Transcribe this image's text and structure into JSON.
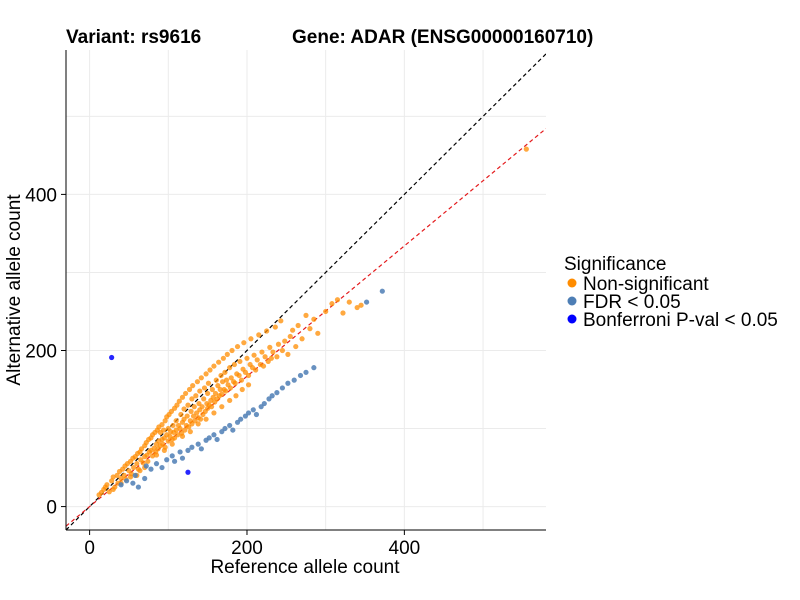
{
  "chart_data": {
    "type": "scatter",
    "title_left": "Variant: rs9616",
    "title_right": "Gene: ADAR (ENSG00000160710)",
    "xlabel": "Reference allele count",
    "ylabel": "Alternative allele count",
    "xlim": [
      -30,
      580
    ],
    "ylim": [
      -30,
      585
    ],
    "x_ticks": [
      0,
      200,
      400
    ],
    "y_ticks": [
      0,
      200,
      400
    ],
    "grid": true,
    "legend_position": "right",
    "legend_title": "Significance",
    "reference_lines": [
      {
        "name": "identity",
        "slope": 1.0,
        "intercept": 0,
        "color": "#000000",
        "style": "dashed"
      },
      {
        "name": "fit",
        "slope": 0.835,
        "intercept": 0,
        "color": "#e41a1c",
        "style": "dashed"
      }
    ],
    "series": [
      {
        "name": "Non-significant",
        "color": "#ff8c00",
        "points": [
          [
            12,
            15
          ],
          [
            18,
            22
          ],
          [
            22,
            28
          ],
          [
            25,
            19
          ],
          [
            28,
            33
          ],
          [
            30,
            38
          ],
          [
            32,
            25
          ],
          [
            35,
            40
          ],
          [
            36,
            30
          ],
          [
            38,
            45
          ],
          [
            40,
            36
          ],
          [
            42,
            48
          ],
          [
            44,
            40
          ],
          [
            45,
            52
          ],
          [
            46,
            35
          ],
          [
            48,
            55
          ],
          [
            50,
            46
          ],
          [
            52,
            58
          ],
          [
            53,
            42
          ],
          [
            55,
            62
          ],
          [
            56,
            50
          ],
          [
            58,
            64
          ],
          [
            60,
            55
          ],
          [
            61,
            68
          ],
          [
            62,
            48
          ],
          [
            64,
            70
          ],
          [
            65,
            60
          ],
          [
            66,
            74
          ],
          [
            68,
            56
          ],
          [
            70,
            78
          ],
          [
            70,
            64
          ],
          [
            72,
            82
          ],
          [
            73,
            66
          ],
          [
            74,
            58
          ],
          [
            75,
            86
          ],
          [
            76,
            70
          ],
          [
            78,
            72
          ],
          [
            78,
            88
          ],
          [
            80,
            65
          ],
          [
            80,
            92
          ],
          [
            82,
            75
          ],
          [
            83,
            95
          ],
          [
            84,
            70
          ],
          [
            85,
            80
          ],
          [
            86,
            98
          ],
          [
            87,
            74
          ],
          [
            88,
            84
          ],
          [
            88,
            102
          ],
          [
            90,
            78
          ],
          [
            90,
            95
          ],
          [
            92,
            86
          ],
          [
            92,
            105
          ],
          [
            93,
            80
          ],
          [
            94,
            98
          ],
          [
            95,
            88
          ],
          [
            96,
            110
          ],
          [
            96,
            76
          ],
          [
            98,
            92
          ],
          [
            98,
            115
          ],
          [
            100,
            84
          ],
          [
            100,
            100
          ],
          [
            101,
            118
          ],
          [
            102,
            90
          ],
          [
            103,
            96
          ],
          [
            104,
            122
          ],
          [
            105,
            86
          ],
          [
            106,
            104
          ],
          [
            107,
            95
          ],
          [
            108,
            126
          ],
          [
            108,
            88
          ],
          [
            110,
            110
          ],
          [
            110,
            98
          ],
          [
            111,
            130
          ],
          [
            112,
            92
          ],
          [
            113,
            104
          ],
          [
            114,
            135
          ],
          [
            115,
            100
          ],
          [
            116,
            118
          ],
          [
            117,
            94
          ],
          [
            118,
            140
          ],
          [
            118,
            108
          ],
          [
            120,
            112
          ],
          [
            120,
            125
          ],
          [
            121,
            98
          ],
          [
            122,
            145
          ],
          [
            123,
            104
          ],
          [
            124,
            116
          ],
          [
            125,
            130
          ],
          [
            126,
            102
          ],
          [
            127,
            150
          ],
          [
            128,
            110
          ],
          [
            129,
            122
          ],
          [
            130,
            106
          ],
          [
            130,
            138
          ],
          [
            131,
            155
          ],
          [
            132,
            116
          ],
          [
            133,
            128
          ],
          [
            134,
            110
          ],
          [
            135,
            142
          ],
          [
            136,
            120
          ],
          [
            137,
            160
          ],
          [
            138,
            114
          ],
          [
            139,
            132
          ],
          [
            140,
            124
          ],
          [
            140,
            148
          ],
          [
            141,
            112
          ],
          [
            142,
            165
          ],
          [
            143,
            128
          ],
          [
            144,
            118
          ],
          [
            145,
            138
          ],
          [
            146,
            152
          ],
          [
            147,
            122
          ],
          [
            148,
            170
          ],
          [
            149,
            132
          ],
          [
            150,
            126
          ],
          [
            150,
            145
          ],
          [
            151,
            158
          ],
          [
            152,
            130
          ],
          [
            153,
            175
          ],
          [
            154,
            136
          ],
          [
            155,
            128
          ],
          [
            156,
            150
          ],
          [
            157,
            140
          ],
          [
            158,
            180
          ],
          [
            159,
            134
          ],
          [
            160,
            145
          ],
          [
            161,
            162
          ],
          [
            162,
            138
          ],
          [
            163,
            155
          ],
          [
            164,
            185
          ],
          [
            165,
            142
          ],
          [
            166,
            150
          ],
          [
            167,
            168
          ],
          [
            168,
            144
          ],
          [
            169,
            160
          ],
          [
            170,
            190
          ],
          [
            171,
            150
          ],
          [
            172,
            172
          ],
          [
            173,
            148
          ],
          [
            174,
            162
          ],
          [
            175,
            195
          ],
          [
            176,
            156
          ],
          [
            178,
            178
          ],
          [
            179,
            152
          ],
          [
            180,
            165
          ],
          [
            181,
            200
          ],
          [
            183,
            160
          ],
          [
            184,
            182
          ],
          [
            185,
            158
          ],
          [
            187,
            170
          ],
          [
            188,
            205
          ],
          [
            190,
            168
          ],
          [
            191,
            186
          ],
          [
            193,
            162
          ],
          [
            195,
            176
          ],
          [
            196,
            210
          ],
          [
            198,
            172
          ],
          [
            200,
            190
          ],
          [
            202,
            168
          ],
          [
            204,
            182
          ],
          [
            205,
            215
          ],
          [
            207,
            178
          ],
          [
            209,
            194
          ],
          [
            211,
            175
          ],
          [
            213,
            188
          ],
          [
            215,
            220
          ],
          [
            217,
            182
          ],
          [
            219,
            198
          ],
          [
            221,
            180
          ],
          [
            223,
            192
          ],
          [
            225,
            225
          ],
          [
            227,
            186
          ],
          [
            229,
            204
          ],
          [
            231,
            190
          ],
          [
            233,
            198
          ],
          [
            236,
            230
          ],
          [
            238,
            192
          ],
          [
            240,
            208
          ],
          [
            243,
            238
          ],
          [
            245,
            200
          ],
          [
            248,
            212
          ],
          [
            252,
            195
          ],
          [
            255,
            218
          ],
          [
            258,
            226
          ],
          [
            262,
            205
          ],
          [
            265,
            232
          ],
          [
            270,
            215
          ],
          [
            275,
            245
          ],
          [
            280,
            228
          ],
          [
            285,
            240
          ],
          [
            290,
            222
          ],
          [
            300,
            250
          ],
          [
            308,
            260
          ],
          [
            315,
            265
          ],
          [
            322,
            248
          ],
          [
            330,
            262
          ],
          [
            340,
            255
          ],
          [
            345,
            258
          ],
          [
            555,
            458
          ],
          [
            60,
            40
          ],
          [
            70,
            50
          ],
          [
            85,
            66
          ],
          [
            95,
            72
          ],
          [
            105,
            80
          ],
          [
            118,
            90
          ],
          [
            128,
            96
          ],
          [
            138,
            106
          ],
          [
            148,
            112
          ],
          [
            158,
            120
          ],
          [
            168,
            128
          ],
          [
            178,
            136
          ],
          [
            186,
            142
          ],
          [
            194,
            150
          ],
          [
            202,
            156
          ],
          [
            40,
            30
          ],
          [
            52,
            38
          ],
          [
            64,
            46
          ],
          [
            20,
            25
          ],
          [
            30,
            22
          ],
          [
            15,
            18
          ]
        ]
      },
      {
        "name": "FDR < 0.05",
        "color": "#4d7eb5",
        "points": [
          [
            40,
            28
          ],
          [
            47,
            33
          ],
          [
            55,
            30
          ],
          [
            58,
            40
          ],
          [
            62,
            25
          ],
          [
            70,
            36
          ],
          [
            72,
            52
          ],
          [
            78,
            48
          ],
          [
            85,
            55
          ],
          [
            92,
            50
          ],
          [
            98,
            60
          ],
          [
            105,
            65
          ],
          [
            108,
            58
          ],
          [
            115,
            70
          ],
          [
            118,
            62
          ],
          [
            125,
            72
          ],
          [
            130,
            76
          ],
          [
            138,
            80
          ],
          [
            142,
            74
          ],
          [
            148,
            85
          ],
          [
            152,
            88
          ],
          [
            158,
            92
          ],
          [
            162,
            86
          ],
          [
            168,
            96
          ],
          [
            172,
            100
          ],
          [
            178,
            104
          ],
          [
            182,
            98
          ],
          [
            188,
            108
          ],
          [
            192,
            112
          ],
          [
            198,
            116
          ],
          [
            202,
            120
          ],
          [
            208,
            124
          ],
          [
            212,
            118
          ],
          [
            218,
            128
          ],
          [
            222,
            132
          ],
          [
            228,
            138
          ],
          [
            232,
            142
          ],
          [
            238,
            146
          ],
          [
            245,
            152
          ],
          [
            252,
            158
          ],
          [
            260,
            162
          ],
          [
            268,
            168
          ],
          [
            275,
            172
          ],
          [
            285,
            178
          ],
          [
            352,
            262
          ],
          [
            372,
            276
          ]
        ]
      },
      {
        "name": "Bonferroni P-val < 0.05",
        "color": "#0000ff",
        "points": [
          [
            28,
            191
          ],
          [
            125,
            44
          ]
        ]
      }
    ]
  }
}
